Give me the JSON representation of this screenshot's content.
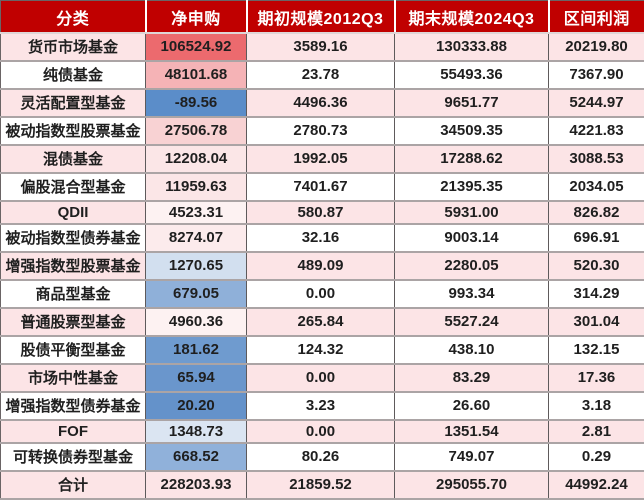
{
  "colors": {
    "header_bg": "#c00000",
    "header_text": "#ffffff",
    "stripe_pink": "#fce4e6",
    "stripe_white": "#ffffff",
    "border_vertical": "#5e5a5b",
    "border_horizontal": "#aba4a5",
    "text": "#1f1f1f",
    "net_scale_high": "#ec6a6e",
    "net_scale_mid": "#fdf6f6",
    "net_scale_low": "#5b8dc9"
  },
  "chart_data": {
    "type": "table",
    "columns": [
      "分类",
      "净申购",
      "期初规模2012Q3",
      "期末规模2024Q3",
      "区间利润"
    ],
    "rows": [
      {
        "category": "货币市场基金",
        "net_purchase": "106524.92",
        "begin_scale": "3589.16",
        "end_scale": "130333.88",
        "profit": "20219.80",
        "net_bg": "#ec6a6e",
        "stripe": "pink"
      },
      {
        "category": "纯债基金",
        "net_purchase": "48101.68",
        "begin_scale": "23.78",
        "end_scale": "55493.36",
        "profit": "7367.90",
        "net_bg": "#f5b3b6",
        "stripe": "white"
      },
      {
        "category": "灵活配置型基金",
        "net_purchase": "-89.56",
        "begin_scale": "4496.36",
        "end_scale": "9651.77",
        "profit": "5244.97",
        "net_bg": "#5b8dc9",
        "stripe": "pink"
      },
      {
        "category": "被动指数型股票基金",
        "net_purchase": "27506.78",
        "begin_scale": "2780.73",
        "end_scale": "34509.35",
        "profit": "4221.83",
        "net_bg": "#f8d2d3",
        "stripe": "white"
      },
      {
        "category": "混债基金",
        "net_purchase": "12208.04",
        "begin_scale": "1992.05",
        "end_scale": "17288.62",
        "profit": "3088.53",
        "net_bg": "#fbe6e7",
        "stripe": "pink"
      },
      {
        "category": "偏股混合型基金",
        "net_purchase": "11959.63",
        "begin_scale": "7401.67",
        "end_scale": "21395.35",
        "profit": "2034.05",
        "net_bg": "#fbe6e7",
        "stripe": "white"
      },
      {
        "category": "QDII",
        "net_purchase": "4523.31",
        "begin_scale": "580.87",
        "end_scale": "5931.00",
        "profit": "826.82",
        "net_bg": "#fdf2f2",
        "stripe": "pink"
      },
      {
        "category": "被动指数型债券基金",
        "net_purchase": "8274.07",
        "begin_scale": "32.16",
        "end_scale": "9003.14",
        "profit": "696.91",
        "net_bg": "#fcebec",
        "stripe": "white"
      },
      {
        "category": "增强指数型股票基金",
        "net_purchase": "1270.65",
        "begin_scale": "489.09",
        "end_scale": "2280.05",
        "profit": "520.30",
        "net_bg": "#d2dfef",
        "stripe": "pink"
      },
      {
        "category": "商品型基金",
        "net_purchase": "679.05",
        "begin_scale": "0.00",
        "end_scale": "993.34",
        "profit": "314.29",
        "net_bg": "#8fb0d9",
        "stripe": "white"
      },
      {
        "category": "普通股票型基金",
        "net_purchase": "4960.36",
        "begin_scale": "265.84",
        "end_scale": "5527.24",
        "profit": "301.04",
        "net_bg": "#fdf2f2",
        "stripe": "pink"
      },
      {
        "category": "股债平衡型基金",
        "net_purchase": "181.62",
        "begin_scale": "124.32",
        "end_scale": "438.10",
        "profit": "132.15",
        "net_bg": "#6f9bcf",
        "stripe": "white"
      },
      {
        "category": "市场中性基金",
        "net_purchase": "65.94",
        "begin_scale": "0.00",
        "end_scale": "83.29",
        "profit": "17.36",
        "net_bg": "#6a96cc",
        "stripe": "pink"
      },
      {
        "category": "增强指数型债券基金",
        "net_purchase": "20.20",
        "begin_scale": "3.23",
        "end_scale": "26.60",
        "profit": "3.18",
        "net_bg": "#6492ca",
        "stripe": "white"
      },
      {
        "category": "FOF",
        "net_purchase": "1348.73",
        "begin_scale": "0.00",
        "end_scale": "1351.54",
        "profit": "2.81",
        "net_bg": "#dbe5f2",
        "stripe": "pink"
      },
      {
        "category": "可转换债券型基金",
        "net_purchase": "668.52",
        "begin_scale": "80.26",
        "end_scale": "749.07",
        "profit": "0.29",
        "net_bg": "#90b1da",
        "stripe": "white"
      }
    ],
    "total_row": {
      "category": "合计",
      "net_purchase": "228203.93",
      "begin_scale": "21859.52",
      "end_scale": "295055.70",
      "profit": "44992.24",
      "stripe": "pink"
    }
  }
}
